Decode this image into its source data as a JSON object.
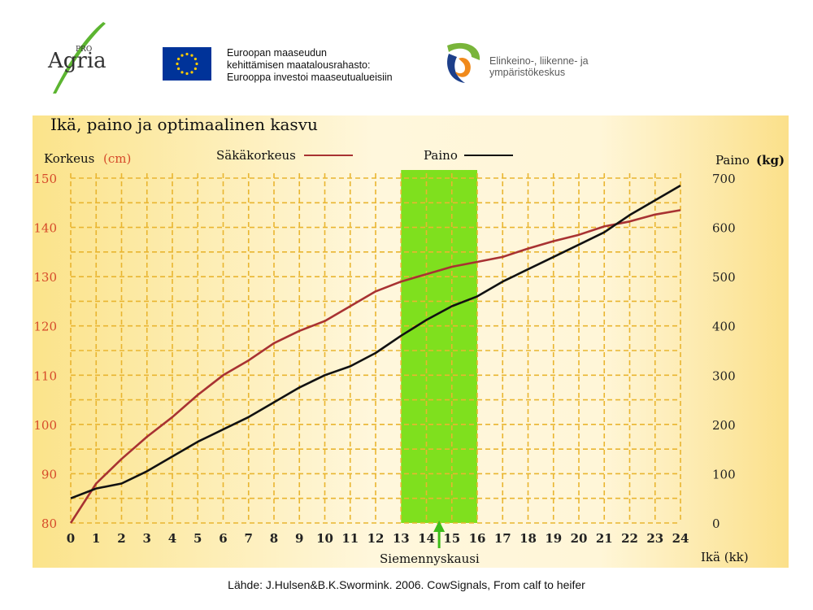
{
  "logos": {
    "proagria": {
      "top": "PRO",
      "main": "Agria"
    },
    "eu": {
      "line1": "Euroopan maaseudun",
      "line2": "kehittämisen maatalousrahasto:",
      "line3": "Eurooppa investoi maaseutualueisiin",
      "flag_color": "#003399",
      "star_color": "#ffcc00"
    },
    "ely": {
      "line1": "Elinkeino-, liikenne- ja",
      "line2": "ympäristökeskus"
    }
  },
  "source": "Lähde: J.Hulsen&B.K.Swormink. 2006. CowSignals, From calf to heifer",
  "chart_data": {
    "type": "line",
    "title": "Ikä, paino ja optimaalinen kasvu",
    "ylabel_left": "Korkeus",
    "ylabel_left_unit": "(cm)",
    "ylabel_right": "Paino",
    "ylabel_right_unit": "(kg)",
    "xlabel": "Ikä (kk)",
    "x": [
      0,
      1,
      2,
      3,
      4,
      5,
      6,
      7,
      8,
      9,
      10,
      11,
      12,
      13,
      14,
      15,
      16,
      17,
      18,
      19,
      20,
      21,
      22,
      23,
      24
    ],
    "xlim": [
      0,
      24
    ],
    "ylim_left": [
      80,
      150
    ],
    "ylim_right": [
      0,
      700
    ],
    "yticks_left": [
      80,
      90,
      100,
      110,
      120,
      130,
      140,
      150
    ],
    "yticks_right": [
      0,
      100,
      200,
      300,
      400,
      500,
      600,
      700
    ],
    "grid": true,
    "legend_position": "top",
    "series": [
      {
        "name": "Säkäkorkeus",
        "axis": "left",
        "color": "#a83232",
        "values": [
          80,
          88,
          93,
          97.5,
          101.5,
          106,
          110,
          113,
          116.5,
          119,
          121,
          124,
          127,
          129,
          130.5,
          132,
          133,
          134,
          135.7,
          137.2,
          138.5,
          140.2,
          141.2,
          142.6,
          143.5
        ]
      },
      {
        "name": "Paino",
        "axis": "right",
        "color": "#111111",
        "values": [
          50,
          70,
          80,
          105,
          135,
          165,
          190,
          215,
          245,
          275,
          300,
          318,
          345,
          380,
          412,
          440,
          460,
          490,
          515,
          540,
          565,
          590,
          625,
          655,
          685
        ]
      }
    ],
    "highlight": {
      "x_from": 13,
      "x_to": 16,
      "color": "#7fe01e",
      "label": "Siemennyskausi",
      "arrow_x": 14.5,
      "arrow_color": "#3cbd1a"
    },
    "colors": {
      "grid": "#e9b530",
      "tick_text": "#e08a2a",
      "left_axis_text": "#d64a2a",
      "background": "#fce9a3"
    }
  }
}
